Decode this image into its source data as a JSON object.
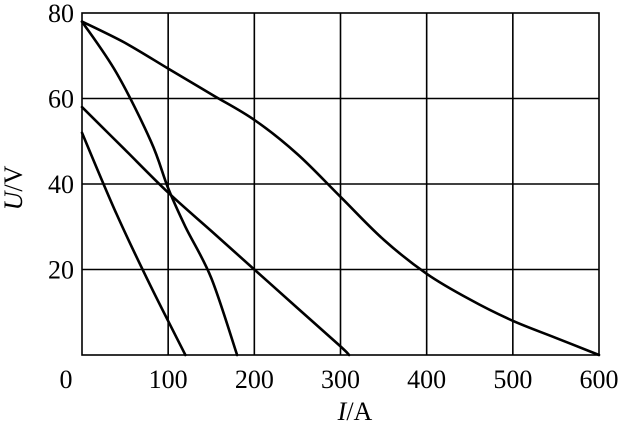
{
  "chart_data": {
    "type": "line",
    "title": "",
    "xlabel": {
      "var": "I",
      "unit": "/A"
    },
    "ylabel": {
      "var": "U",
      "unit": "/V"
    },
    "xlim": [
      0,
      600
    ],
    "ylim": [
      0,
      80
    ],
    "xticks": [
      0,
      100,
      200,
      300,
      400,
      500,
      600
    ],
    "yticks": [
      20,
      40,
      60,
      80
    ],
    "xtick_labels": [
      "0",
      "100",
      "200",
      "300",
      "400",
      "500",
      "600"
    ],
    "ytick_labels": [
      "20",
      "40",
      "60",
      "80"
    ],
    "grid": true,
    "line_color": "#000000",
    "series": [
      {
        "points": [
          [
            0,
            52
          ],
          [
            40,
            33
          ],
          [
            80,
            16
          ],
          [
            120,
            0
          ]
        ]
      },
      {
        "points": [
          [
            0,
            78
          ],
          [
            40,
            66
          ],
          [
            80,
            50
          ],
          [
            100,
            39
          ],
          [
            120,
            30
          ],
          [
            150,
            18
          ],
          [
            180,
            0
          ]
        ]
      },
      {
        "points": [
          [
            0,
            58
          ],
          [
            50,
            48
          ],
          [
            100,
            38
          ],
          [
            150,
            29
          ],
          [
            200,
            20
          ],
          [
            250,
            11
          ],
          [
            300,
            2
          ],
          [
            310,
            0
          ]
        ]
      },
      {
        "points": [
          [
            0,
            78
          ],
          [
            50,
            73
          ],
          [
            100,
            67
          ],
          [
            150,
            61
          ],
          [
            200,
            55
          ],
          [
            250,
            47
          ],
          [
            300,
            37
          ],
          [
            350,
            27
          ],
          [
            400,
            19
          ],
          [
            450,
            13
          ],
          [
            500,
            8
          ],
          [
            550,
            4
          ],
          [
            600,
            0
          ]
        ]
      }
    ]
  }
}
